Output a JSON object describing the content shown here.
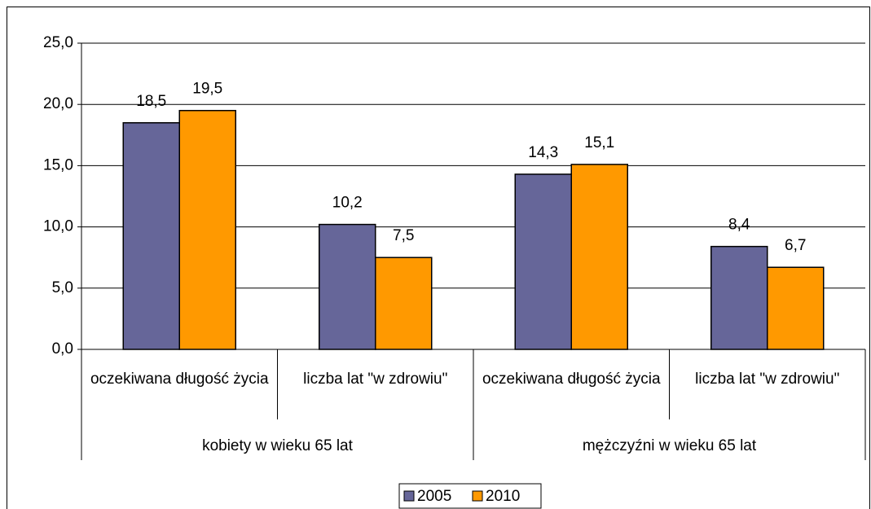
{
  "chart_data": {
    "type": "bar",
    "categories": [
      "oczekiwana długość życia",
      "liczba lat \"w zdrowiu\"",
      "oczekiwana długość życia",
      "liczba lat \"w zdrowiu\""
    ],
    "groups": [
      "kobiety w wieku 65 lat",
      "mężczyźni w wieku 65 lat"
    ],
    "series": [
      {
        "name": "2005",
        "color": "#666699",
        "values": [
          18.5,
          10.2,
          14.3,
          8.4
        ],
        "value_labels": [
          "18,5",
          "10,2",
          "14,3",
          "8,4"
        ]
      },
      {
        "name": "2010",
        "color": "#ff9900",
        "values": [
          19.5,
          7.5,
          15.1,
          6.7
        ],
        "value_labels": [
          "19,5",
          "7,5",
          "15,1",
          "6,7"
        ]
      }
    ],
    "ylim": [
      0,
      25
    ],
    "yticks": [
      {
        "value": 0,
        "label": "0,0"
      },
      {
        "value": 5,
        "label": "5,0"
      },
      {
        "value": 10,
        "label": "10,0"
      },
      {
        "value": 15,
        "label": "15,0"
      },
      {
        "value": 20,
        "label": "20,0"
      },
      {
        "value": 25,
        "label": "25,0"
      }
    ],
    "grid": true,
    "legend": "bottom"
  }
}
